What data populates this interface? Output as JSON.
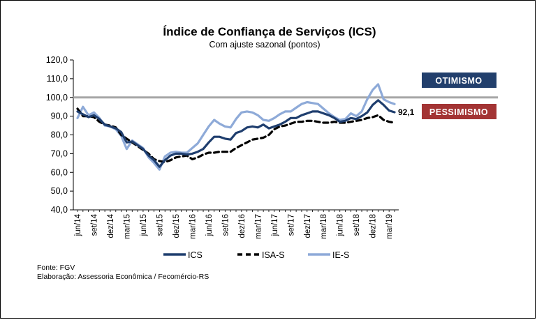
{
  "chart_data": {
    "type": "line",
    "title": "Índice de Confiança de Serviços (ICS)",
    "subtitle": "Com ajuste sazonal  (pontos)",
    "ylim": [
      40,
      120
    ],
    "y_ticks": [
      "40,0",
      "50,0",
      "60,0",
      "70,0",
      "80,0",
      "90,0",
      "100,0",
      "110,0",
      "120,0"
    ],
    "reference_line": 100,
    "x": [
      "jun/14",
      "jul/14",
      "ago/14",
      "set/14",
      "out/14",
      "nov/14",
      "dez/14",
      "jan/15",
      "fev/15",
      "mar/15",
      "abr/15",
      "mai/15",
      "jun/15",
      "jul/15",
      "ago/15",
      "set/15",
      "out/15",
      "nov/15",
      "dez/15",
      "jan/16",
      "fev/16",
      "mar/16",
      "abr/16",
      "mai/16",
      "jun/16",
      "jul/16",
      "ago/16",
      "set/16",
      "out/16",
      "nov/16",
      "dez/16",
      "jan/17",
      "fev/17",
      "mar/17",
      "abr/17",
      "mai/17",
      "jun/17",
      "jul/17",
      "ago/17",
      "set/17",
      "out/17",
      "nov/17",
      "dez/17",
      "jan/18",
      "fev/18",
      "mar/18",
      "abr/18",
      "mai/18",
      "jun/18",
      "jul/18",
      "ago/18",
      "set/18",
      "out/18",
      "nov/18",
      "dez/18",
      "jan/19",
      "fev/19",
      "mar/19",
      "abr/19"
    ],
    "x_tick_labels": [
      "jun/14",
      "set/14",
      "dez/14",
      "mar/15",
      "jun/15",
      "set/15",
      "dez/15",
      "mar/16",
      "jun/16",
      "set/16",
      "dez/16",
      "mar/17",
      "jun/17",
      "set/17",
      "dez/17",
      "mar/18",
      "jun/18",
      "set/18",
      "dez/18",
      "mar/19"
    ],
    "series": [
      {
        "name": "ICS",
        "color": "#1f3e6e",
        "style": "solid",
        "values": [
          92.5,
          91.0,
          89.5,
          90.5,
          88.5,
          85.5,
          84.5,
          83.5,
          81.5,
          76.0,
          76.5,
          74.5,
          72.5,
          69.0,
          66.5,
          63.0,
          66.5,
          69.0,
          70.0,
          70.0,
          69.5,
          70.0,
          71.0,
          72.5,
          76.0,
          79.0,
          79.0,
          78.0,
          77.5,
          81.0,
          82.0,
          84.0,
          84.5,
          84.0,
          85.5,
          83.5,
          84.5,
          85.5,
          87.0,
          89.0,
          89.0,
          90.5,
          91.5,
          92.5,
          92.5,
          91.5,
          90.5,
          89.0,
          87.0,
          87.5,
          89.0,
          88.5,
          90.0,
          92.0,
          96.0,
          98.5,
          96.0,
          93.0,
          92.1
        ]
      },
      {
        "name": "ISA-S",
        "color": "#000000",
        "style": "dashed",
        "values": [
          94.0,
          90.0,
          90.0,
          89.5,
          87.0,
          85.5,
          85.0,
          84.0,
          80.0,
          78.0,
          76.0,
          74.0,
          72.0,
          70.0,
          67.0,
          66.0,
          65.5,
          66.5,
          68.0,
          68.5,
          69.0,
          67.0,
          68.0,
          69.5,
          70.5,
          70.5,
          71.0,
          71.0,
          71.0,
          73.0,
          74.5,
          76.0,
          77.5,
          78.0,
          78.5,
          80.0,
          83.0,
          84.5,
          85.0,
          86.0,
          87.0,
          87.0,
          87.5,
          87.5,
          87.0,
          86.5,
          86.5,
          87.0,
          86.5,
          86.5,
          87.0,
          87.5,
          88.0,
          89.0,
          89.5,
          90.5,
          88.0,
          87.0,
          86.5
        ]
      },
      {
        "name": "IE-S",
        "color": "#8eaad8",
        "style": "solid",
        "values": [
          89.0,
          95.0,
          90.5,
          92.0,
          89.0,
          85.0,
          84.5,
          83.0,
          79.5,
          72.5,
          77.0,
          75.0,
          73.0,
          68.0,
          65.0,
          61.5,
          68.5,
          70.5,
          71.0,
          70.5,
          70.5,
          73.0,
          75.5,
          80.0,
          84.5,
          88.0,
          86.0,
          84.5,
          84.0,
          88.5,
          92.0,
          92.5,
          92.0,
          90.5,
          88.0,
          87.5,
          89.0,
          91.0,
          92.5,
          92.5,
          94.5,
          96.5,
          97.5,
          97.0,
          96.5,
          94.0,
          91.5,
          89.5,
          88.0,
          88.5,
          91.5,
          90.0,
          92.5,
          99.0,
          104.0,
          107.0,
          99.0,
          97.5,
          96.5
        ]
      }
    ],
    "last_value_label": "92,1",
    "annotations": {
      "otimismo": "OTIMISMO",
      "pessimismo": "PESSIMISMO"
    }
  },
  "footer": {
    "source": "Fonte: FGV",
    "elaboration": "Elaboração: Assessoria Econômica / Fecomércio-RS"
  }
}
